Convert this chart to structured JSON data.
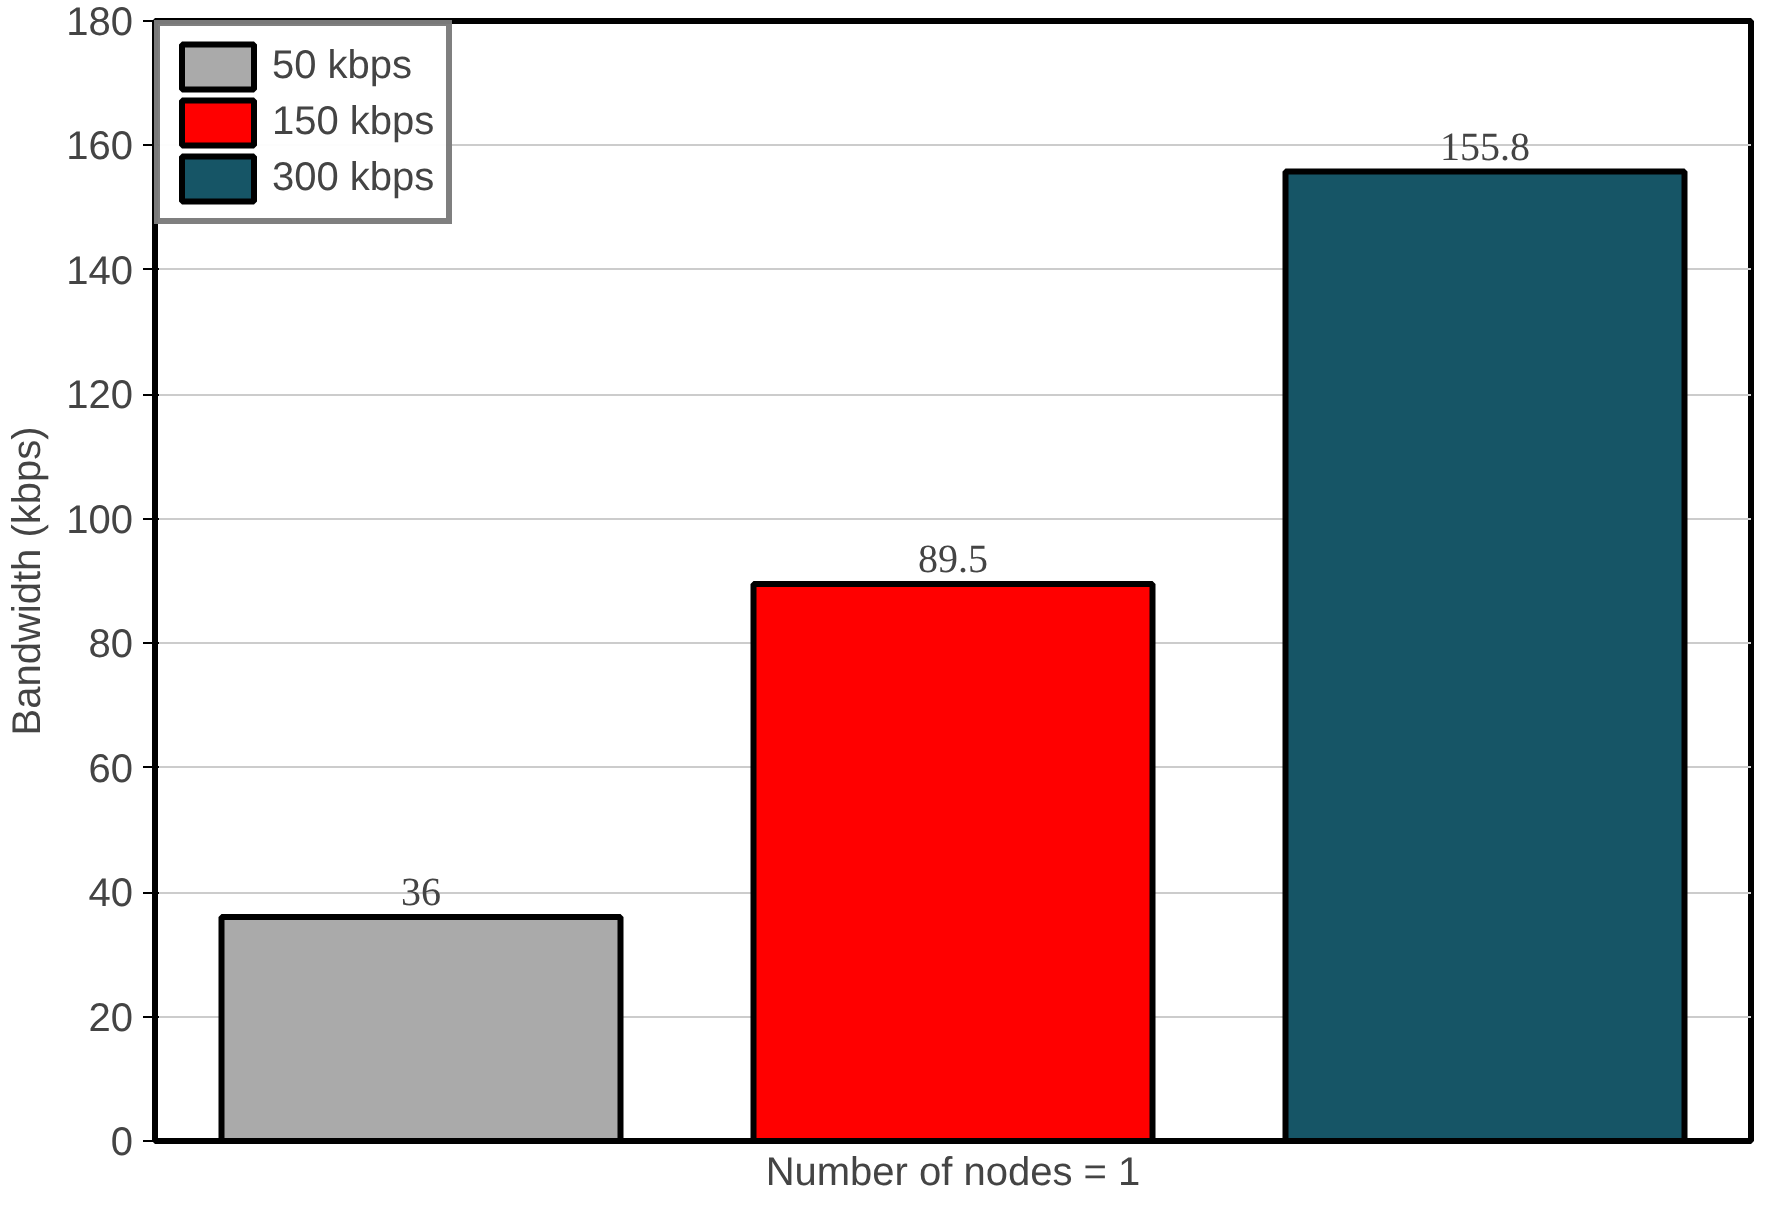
{
  "chart_data": {
    "type": "bar",
    "xlabel": "Number of nodes = 1",
    "ylabel": "Bandwidth (kbps)",
    "categories": [
      null
    ],
    "series": [
      {
        "name": "50 kbps",
        "color": "#aaaaaa",
        "values": [
          36
        ]
      },
      {
        "name": "150 kbps",
        "color": "#ff0000",
        "values": [
          89.5
        ]
      },
      {
        "name": "300 kbps",
        "color": "#165566",
        "values": [
          155.8
        ]
      }
    ],
    "ylim": [
      0,
      180
    ],
    "yticks": [
      0,
      20,
      40,
      60,
      80,
      100,
      120,
      140,
      160,
      180
    ],
    "grid": "y",
    "legend": "top left",
    "data_labels": true
  }
}
